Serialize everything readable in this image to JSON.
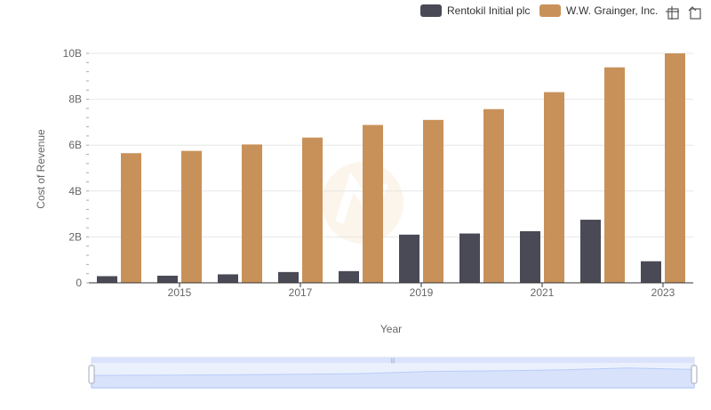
{
  "chart_data": {
    "type": "bar",
    "title": "",
    "xlabel": "Year",
    "ylabel": "Cost of Revenue",
    "categories": [
      "2014",
      "2015",
      "2016",
      "2017",
      "2018",
      "2019",
      "2020",
      "2021",
      "2022",
      "2023"
    ],
    "x_tick_labels": [
      "2015",
      "2017",
      "2019",
      "2021",
      "2023"
    ],
    "y_tick_labels": [
      "0",
      "2B",
      "4B",
      "6B",
      "8B",
      "10B"
    ],
    "ylim": [
      0,
      10000000000
    ],
    "grid": true,
    "legend_position": "top-right",
    "series": [
      {
        "name": "Rentokil Initial plc",
        "color": "#4a4a56",
        "values": [
          290000000,
          310000000,
          370000000,
          470000000,
          510000000,
          2100000000,
          2150000000,
          2250000000,
          2750000000,
          940000000
        ]
      },
      {
        "name": "W.W. Grainger, Inc.",
        "color": "#c8915a",
        "values": [
          5650000000,
          5750000000,
          6030000000,
          6330000000,
          6880000000,
          7100000000,
          7570000000,
          8310000000,
          9390000000,
          10000000000
        ]
      }
    ]
  },
  "toolbar": {
    "icons": [
      "zoom-icon",
      "reset-zoom-icon"
    ]
  },
  "navigator": {
    "accent_color": "#dbe3fb"
  }
}
